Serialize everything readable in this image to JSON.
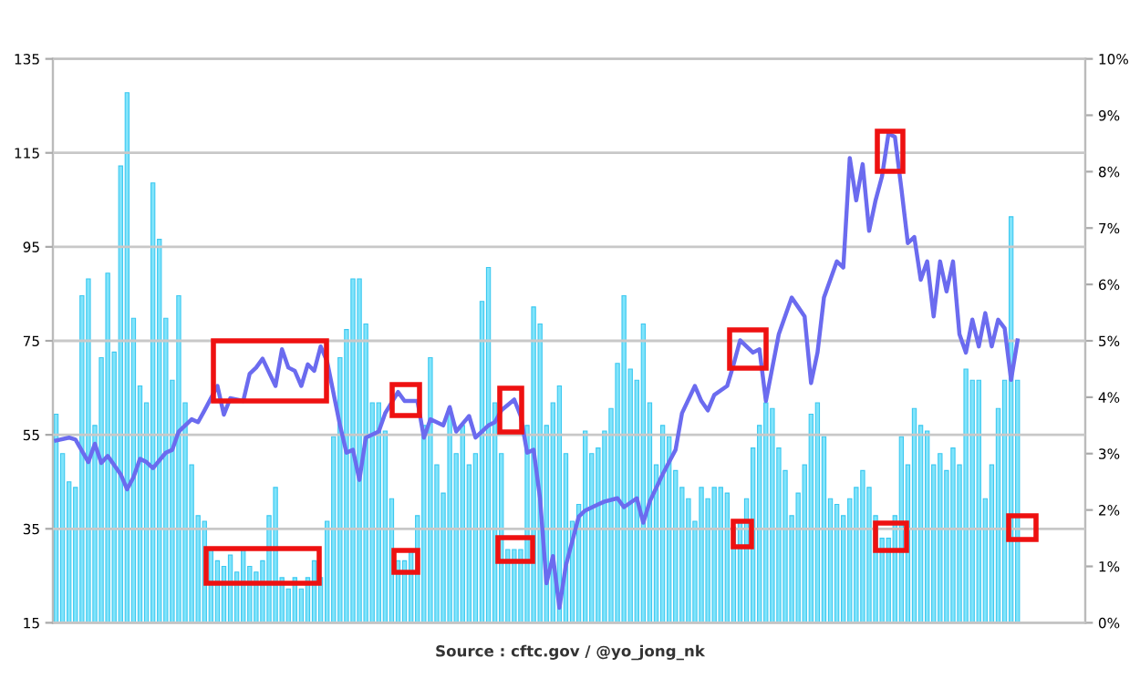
{
  "chart_data": {
    "type": "bar",
    "categories": [
      null,
      null,
      null,
      null,
      null,
      null,
      null,
      null,
      null,
      null,
      null,
      null,
      null,
      null,
      null,
      null,
      null,
      null,
      null,
      null,
      null,
      null,
      null,
      null,
      null,
      null,
      null,
      null,
      null,
      null,
      null,
      null,
      null,
      null,
      null,
      null,
      null,
      null,
      null,
      null,
      null,
      null,
      null,
      null,
      null,
      null,
      null,
      null,
      null,
      null,
      null,
      null,
      null,
      null,
      null,
      null,
      null,
      null,
      null,
      null,
      null,
      null,
      null,
      null,
      null,
      null,
      null,
      null,
      null,
      null,
      null,
      null,
      null,
      null,
      null,
      null,
      null,
      null,
      null,
      null,
      null,
      null,
      null,
      null,
      null,
      null,
      null,
      null,
      null,
      null,
      null,
      null,
      null,
      null,
      null,
      null,
      null,
      null,
      null,
      null,
      null,
      null,
      null,
      null,
      null,
      null,
      null,
      null,
      null,
      null,
      null,
      null,
      null,
      null,
      null,
      null,
      null,
      null,
      null,
      null,
      null,
      null,
      null,
      null,
      null,
      null,
      null,
      null,
      null,
      null,
      null,
      null,
      null,
      null,
      null,
      null,
      null,
      null,
      null,
      null,
      null,
      null,
      null,
      null,
      null,
      null,
      null,
      null,
      null,
      null,
      null,
      null,
      null,
      null,
      null,
      null,
      null,
      null,
      null,
      null
    ],
    "series": [
      {
        "axis": "y2",
        "color": "#80e4fb",
        "values": [
          3.7,
          3.0,
          2.5,
          2.4,
          5.8,
          6.1,
          3.5,
          4.7,
          6.2,
          4.8,
          8.1,
          9.4,
          5.4,
          4.2,
          3.9,
          7.8,
          6.8,
          5.4,
          4.3,
          5.8,
          3.9,
          2.8,
          1.9,
          1.8,
          1.3,
          1.1,
          1.0,
          1.2,
          0.9,
          1.3,
          1.0,
          0.9,
          1.1,
          1.9,
          2.4,
          0.8,
          0.6,
          0.8,
          0.6,
          0.8,
          1.1,
          0.8,
          1.8,
          3.3,
          4.7,
          5.2,
          6.1,
          6.1,
          5.3,
          3.9,
          3.9,
          3.4,
          2.2,
          1.1,
          1.1,
          1.3,
          1.9,
          3.5,
          4.7,
          2.8,
          2.3,
          3.8,
          3.0,
          3.5,
          2.8,
          3.0,
          5.7,
          6.3,
          3.9,
          3.0,
          1.3,
          1.3,
          1.3,
          3.5,
          5.6,
          5.3,
          3.5,
          3.9,
          4.2,
          3.0,
          1.8,
          2.1,
          3.4,
          3.0,
          3.1,
          3.4,
          3.8,
          4.6,
          5.8,
          4.5,
          4.3,
          5.3,
          3.9,
          2.8,
          3.5,
          3.3,
          2.7,
          2.4,
          2.2,
          1.8,
          2.4,
          2.2,
          2.4,
          2.4,
          2.3,
          1.7,
          1.8,
          2.2,
          3.1,
          3.5,
          3.9,
          3.8,
          3.1,
          2.7,
          1.9,
          2.3,
          2.8,
          3.7,
          3.9,
          3.3,
          2.2,
          2.1,
          1.9,
          2.2,
          2.4,
          2.7,
          2.4,
          1.9,
          1.5,
          1.5,
          1.9,
          3.3,
          2.8,
          3.8,
          3.5,
          3.4,
          2.8,
          3.0,
          2.7,
          3.1,
          2.8,
          4.5,
          4.3,
          4.3,
          2.2,
          2.8,
          3.8,
          4.3,
          7.2,
          4.3,
          null,
          null,
          null,
          null,
          null,
          null,
          null,
          null,
          null,
          null
        ]
      },
      {
        "type": "line",
        "axis": "y",
        "color": "#6b6bef",
        "values": [
          53.8,
          null,
          54.4,
          54,
          null,
          49.2,
          53.1,
          49,
          50.5,
          null,
          46.6,
          43.4,
          46,
          49.9,
          49.2,
          47.9,
          null,
          51.2,
          51.8,
          55.7,
          null,
          58.3,
          57.7,
          60.2,
          null,
          65.4,
          59.3,
          62.8,
          null,
          62.2,
          68,
          69.3,
          71.2,
          null,
          65.4,
          73.2,
          69.3,
          68.6,
          65.4,
          70,
          68.6,
          73.8,
          70.6,
          null,
          57,
          51.2,
          51.8,
          45.4,
          54.4,
          null,
          55.7,
          59.6,
          null,
          64.1,
          62.2,
          null,
          62.2,
          54.4,
          58.3,
          null,
          57,
          60.9,
          55.7,
          null,
          59,
          54.4,
          null,
          57,
          57.7,
          60.2,
          null,
          62.5,
          59,
          51.2,
          51.8,
          41.5,
          23.4,
          29.2,
          18.2,
          27.2,
          null,
          37.6,
          38.9,
          null,
          40.2,
          40.8,
          null,
          41.5,
          39.6,
          null,
          41.5,
          36.3,
          40.8,
          null,
          46.6,
          49.2,
          51.8,
          59.6,
          null,
          65.4,
          62.2,
          60.2,
          63.5,
          null,
          65.4,
          70,
          75.1,
          null,
          72.5,
          73.2,
          62.2,
          69.3,
          76.4,
          null,
          84.2,
          82.2,
          80.2,
          66,
          72.5,
          84.2,
          null,
          91.9,
          90.6,
          113.9,
          104.9,
          112.6,
          98.4,
          104.9,
          110,
          119.1,
          118.4,
          107.4,
          95.8,
          97.1,
          88,
          91.9,
          80.2,
          91.9,
          85.5,
          91.9,
          76.4,
          72.5,
          79.5,
          73.8,
          80.9,
          73.8,
          79.5,
          77.7,
          66.7,
          75.1,
          null,
          null,
          null,
          null,
          null,
          null,
          null,
          null,
          null,
          null
        ]
      }
    ],
    "ylim": [
      15,
      135
    ],
    "yticks": [
      15,
      35,
      55,
      75,
      95,
      115,
      135
    ],
    "y2lim": [
      0,
      10
    ],
    "y2ticks": [
      {
        "value": 0,
        "label": "0%"
      },
      {
        "value": 1,
        "label": "1%"
      },
      {
        "value": 2,
        "label": "2%"
      },
      {
        "value": 3,
        "label": "3%"
      },
      {
        "value": 4,
        "label": "4%"
      },
      {
        "value": 5,
        "label": "5%"
      },
      {
        "value": 6,
        "label": "6%"
      },
      {
        "value": 7,
        "label": "7%"
      },
      {
        "value": 8,
        "label": "8%"
      },
      {
        "value": 9,
        "label": "9%"
      },
      {
        "value": 10,
        "label": "10%"
      }
    ],
    "grid": "y",
    "marker": "none",
    "line_style": "solid",
    "annotations": [
      "Source : cftc.gov / @yo_jong_nk"
    ]
  }
}
